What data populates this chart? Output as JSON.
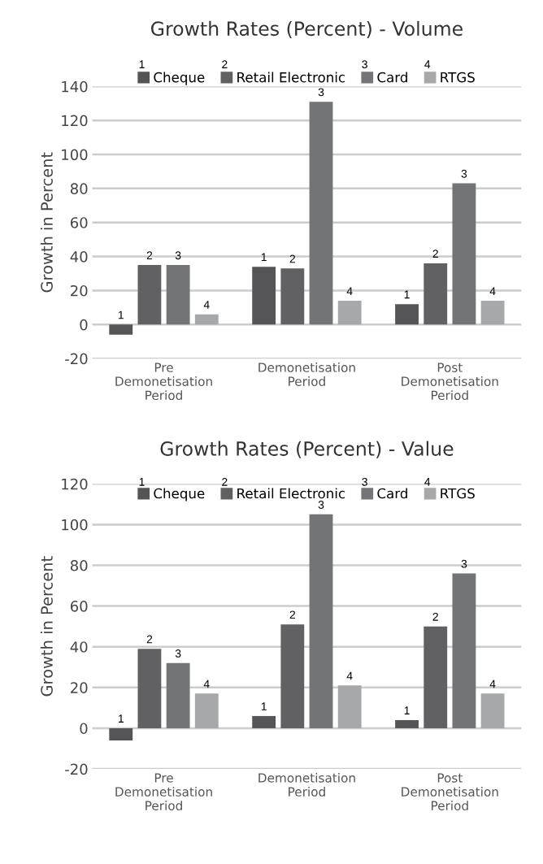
{
  "chart_data": [
    {
      "type": "bar",
      "title": "Growth Rates (Percent) - Volume",
      "ylabel": "Growth in Percent",
      "categories": [
        "Pre\nDemonetisation\nPeriod",
        "Demonetisation\nPeriod",
        "Post\nDemonetisation\nPeriod"
      ],
      "series": [
        {
          "name": "Cheque",
          "color": "#555558",
          "values": [
            -6,
            34,
            12
          ]
        },
        {
          "name": "Retail Electronic",
          "color": "#616163",
          "values": [
            35,
            33,
            36
          ]
        },
        {
          "name": "Card",
          "color": "#737477",
          "values": [
            35,
            131,
            83
          ]
        },
        {
          "name": "RTGS",
          "color": "#a7a8aa",
          "values": [
            6,
            14,
            14
          ]
        }
      ],
      "annotations": [
        "1",
        "2",
        "3",
        "4",
        "1",
        "2",
        "3",
        "4",
        "1",
        "2",
        "3",
        "4",
        "1",
        "2",
        "3",
        "4"
      ],
      "ylim": [
        -20,
        140
      ],
      "yticks": [
        -20,
        0,
        20,
        40,
        60,
        80,
        100,
        120,
        140
      ],
      "grid": "y",
      "legend": "top"
    },
    {
      "type": "bar",
      "title": "Growth Rates (Percent) - Value",
      "ylabel": "Growth in Percent",
      "categories": [
        "Pre\nDemonetisation\nPeriod",
        "Demonetisation\nPeriod",
        "Post\nDemonetisation\nPeriod"
      ],
      "series": [
        {
          "name": "Cheque",
          "color": "#555558",
          "values": [
            -6,
            6,
            4
          ]
        },
        {
          "name": "Retail Electronic",
          "color": "#616163",
          "values": [
            39,
            51,
            50
          ]
        },
        {
          "name": "Card",
          "color": "#737477",
          "values": [
            32,
            105,
            76
          ]
        },
        {
          "name": "RTGS",
          "color": "#a7a8aa",
          "values": [
            17,
            21,
            17
          ]
        }
      ],
      "annotations": [
        "1",
        "2",
        "3",
        "4",
        "1",
        "2",
        "3",
        "4",
        "1",
        "2",
        "3",
        "4",
        "1",
        "2",
        "3",
        "4"
      ],
      "ylim": [
        -20,
        120
      ],
      "yticks": [
        -20,
        0,
        20,
        40,
        60,
        80,
        100,
        120
      ],
      "grid": "y",
      "legend": "top"
    }
  ]
}
